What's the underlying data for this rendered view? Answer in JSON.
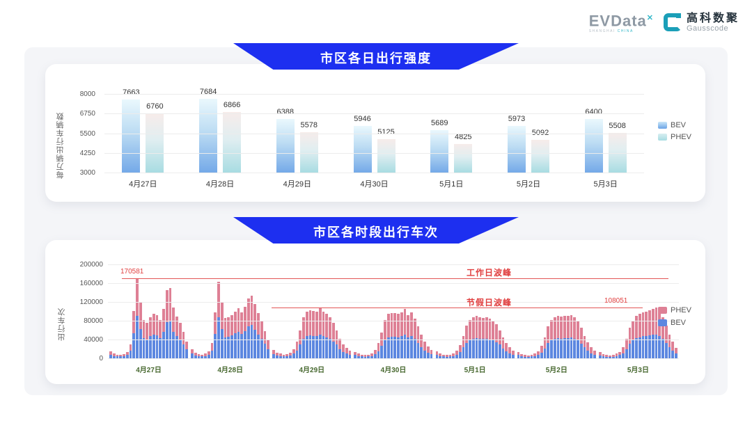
{
  "logo": {
    "evdata_text": "EVData",
    "evdata_sup": "✕",
    "evdata_sub_left": "SHANGHAI ",
    "evdata_sub_right": "CHINA",
    "gausscode_cn": "高科数聚",
    "gausscode_en": "Gausscode"
  },
  "banners": {
    "chart1_title": "市区各日出行强度",
    "chart2_title": "市区各时段出行车次"
  },
  "colors": {
    "banner_blue": "#1d2ff0",
    "bev_bar_top": "#eaf8fd",
    "bev_bar_bottom": "#74a9e8",
    "phev_bar_top": "#f7ecea",
    "phev_bar_bottom": "#a8dce2",
    "phev_stack": "#de8095",
    "bev_stack": "#5c87e0",
    "annotation_red": "#e03e3e",
    "date_label_green": "#47682f"
  },
  "chart_data": [
    {
      "type": "bar",
      "title": "市区各日出行强度",
      "ylabel": "每万辆出行车辆数",
      "ylim": [
        3000,
        8000
      ],
      "yticks": [
        8000,
        6750,
        5500,
        4250,
        3000
      ],
      "grid": true,
      "legend_position": "right",
      "categories": [
        "4月27日",
        "4月28日",
        "4月29日",
        "4月30日",
        "5月1日",
        "5月2日",
        "5月3日"
      ],
      "series": [
        {
          "name": "BEV",
          "values": [
            7663,
            7684,
            6388,
            5946,
            5689,
            5973,
            6400
          ]
        },
        {
          "name": "PHEV",
          "values": [
            6760,
            6866,
            5578,
            5125,
            4825,
            5092,
            5508
          ]
        }
      ]
    },
    {
      "type": "bar",
      "subtype": "stacked-hourly",
      "title": "市区各时段出行车次",
      "ylabel": "出行车次",
      "ylim": [
        0,
        200000
      ],
      "yticks": [
        200000,
        160000,
        120000,
        80000,
        40000,
        0
      ],
      "grid": true,
      "legend_position": "right",
      "legend": [
        "PHEV",
        "BEV"
      ],
      "annotations": {
        "workday_peak_value": "170581",
        "workday_peak_label": "工作日波峰",
        "workday_line_y": 170581,
        "holiday_peak_value": "108051",
        "holiday_peak_label": "节假日波峰",
        "holiday_line_y": 108051
      },
      "days": [
        {
          "label": "4月27日",
          "bev": [
            8000,
            5000,
            4000,
            4000,
            5000,
            7000,
            16000,
            54000,
            91000,
            62000,
            43000,
            40000,
            47000,
            50000,
            49000,
            43000,
            56000,
            77000,
            79000,
            57000,
            47000,
            40000,
            30000,
            19000
          ],
          "phev": [
            7000,
            5000,
            4000,
            3000,
            4000,
            7000,
            14000,
            47000,
            79581,
            57000,
            38000,
            36000,
            41000,
            45000,
            43000,
            39000,
            49000,
            68000,
            70000,
            51000,
            42000,
            36000,
            26000,
            17000
          ]
        },
        {
          "label": "4月28日",
          "bev": [
            11000,
            6000,
            5000,
            4000,
            5000,
            8000,
            17000,
            52000,
            87000,
            62000,
            45000,
            46000,
            49000,
            53000,
            56000,
            52000,
            58000,
            68000,
            71000,
            61000,
            51000,
            41000,
            31000,
            20000
          ],
          "phev": [
            9000,
            6000,
            4000,
            4000,
            5000,
            7000,
            15000,
            46000,
            76000,
            56000,
            41000,
            42000,
            43000,
            47000,
            50000,
            46000,
            52000,
            60000,
            62000,
            54000,
            45000,
            37000,
            27000,
            18000
          ]
        },
        {
          "label": "4月29日",
          "bev": [
            9000,
            6000,
            5000,
            4000,
            5000,
            6000,
            10000,
            17000,
            29000,
            42000,
            48000,
            49000,
            48000,
            48000,
            51000,
            48000,
            45000,
            42000,
            36000,
            29000,
            20000,
            14000,
            11000,
            8000
          ],
          "phev": [
            9000,
            6000,
            5000,
            4000,
            4000,
            6000,
            10000,
            18000,
            31000,
            46000,
            52000,
            54000,
            53000,
            52000,
            56000,
            52000,
            50000,
            46000,
            39000,
            31000,
            22000,
            16000,
            11000,
            8000
          ]
        },
        {
          "label": "4月30日",
          "bev": [
            7000,
            5000,
            4000,
            3000,
            4000,
            5000,
            9000,
            15000,
            26000,
            39000,
            45000,
            46000,
            46000,
            45000,
            47000,
            50000,
            44000,
            47000,
            41000,
            33000,
            24000,
            17000,
            12000,
            9000
          ],
          "phev": [
            7000,
            5000,
            4000,
            4000,
            4000,
            6000,
            9000,
            17000,
            29000,
            43000,
            50000,
            51000,
            50000,
            50000,
            51000,
            55000,
            48000,
            51000,
            44000,
            35000,
            26000,
            18000,
            13000,
            9000
          ]
        },
        {
          "label": "5月1日",
          "bev": [
            8000,
            5000,
            4000,
            3000,
            4000,
            5000,
            8000,
            13000,
            23000,
            33000,
            39000,
            42000,
            43000,
            42000,
            41000,
            42000,
            40000,
            38000,
            34000,
            29000,
            21000,
            15000,
            11000,
            8000
          ],
          "phev": [
            7000,
            5000,
            4000,
            4000,
            4000,
            5000,
            8000,
            15000,
            25000,
            37000,
            43000,
            46000,
            47000,
            46000,
            45000,
            46000,
            44000,
            42000,
            38000,
            31000,
            24000,
            17000,
            13000,
            9000
          ]
        },
        {
          "label": "5月2日",
          "bev": [
            7000,
            4000,
            3000,
            3000,
            4000,
            5000,
            7000,
            12000,
            21000,
            32000,
            39000,
            42000,
            43000,
            42000,
            43000,
            43000,
            44000,
            42000,
            38000,
            31000,
            23000,
            16000,
            11000,
            8000
          ],
          "phev": [
            7000,
            5000,
            4000,
            3000,
            4000,
            5000,
            8000,
            14000,
            24000,
            36000,
            43000,
            46000,
            47000,
            47000,
            48000,
            47000,
            48000,
            46000,
            42000,
            34000,
            25000,
            18000,
            13000,
            8000
          ]
        },
        {
          "label": "5月3日",
          "bev": [
            6000,
            4000,
            3000,
            3000,
            3000,
            5000,
            7000,
            11000,
            20000,
            31000,
            38000,
            43000,
            45000,
            47000,
            48000,
            49000,
            50000,
            51000,
            48000,
            42000,
            33000,
            24000,
            17000,
            10000
          ],
          "phev": [
            7000,
            5000,
            4000,
            3000,
            4000,
            5000,
            7000,
            13000,
            22000,
            34000,
            42000,
            47000,
            50000,
            51000,
            52000,
            54000,
            55000,
            57051,
            52000,
            46000,
            37000,
            26000,
            18000,
            12000
          ]
        }
      ]
    }
  ]
}
